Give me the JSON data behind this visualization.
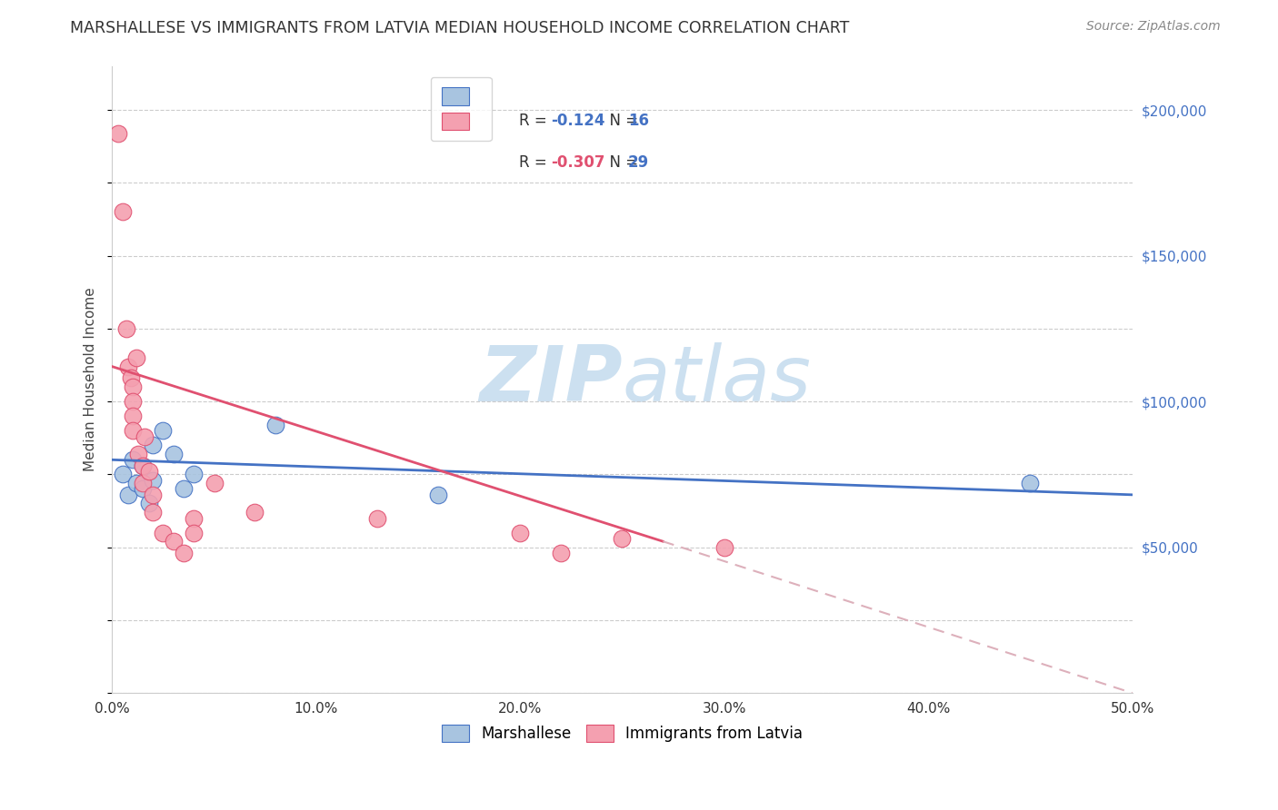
{
  "title": "MARSHALLESE VS IMMIGRANTS FROM LATVIA MEDIAN HOUSEHOLD INCOME CORRELATION CHART",
  "source": "Source: ZipAtlas.com",
  "xlabel_ticks": [
    "0.0%",
    "10.0%",
    "20.0%",
    "30.0%",
    "40.0%",
    "50.0%"
  ],
  "xlabel_tick_vals": [
    0.0,
    0.1,
    0.2,
    0.3,
    0.4,
    0.5
  ],
  "ylabel": "Median Household Income",
  "ytick_labels": [
    "$50,000",
    "$100,000",
    "$150,000",
    "$200,000"
  ],
  "ytick_vals": [
    50000,
    100000,
    150000,
    200000
  ],
  "xlim": [
    0.0,
    0.5
  ],
  "ylim": [
    0,
    215000
  ],
  "marshallese_scatter": {
    "x": [
      0.005,
      0.008,
      0.01,
      0.012,
      0.015,
      0.015,
      0.018,
      0.02,
      0.02,
      0.025,
      0.03,
      0.035,
      0.04,
      0.08,
      0.16,
      0.45
    ],
    "y": [
      75000,
      68000,
      80000,
      72000,
      78000,
      70000,
      65000,
      85000,
      73000,
      90000,
      82000,
      70000,
      75000,
      92000,
      68000,
      72000
    ],
    "color": "#a8c4e0",
    "edge_color": "#4472c4"
  },
  "latvia_scatter": {
    "x": [
      0.003,
      0.005,
      0.007,
      0.008,
      0.009,
      0.01,
      0.01,
      0.01,
      0.01,
      0.012,
      0.013,
      0.015,
      0.015,
      0.016,
      0.018,
      0.02,
      0.02,
      0.025,
      0.03,
      0.035,
      0.04,
      0.04,
      0.05,
      0.07,
      0.13,
      0.2,
      0.22,
      0.25,
      0.3
    ],
    "y": [
      192000,
      165000,
      125000,
      112000,
      108000,
      105000,
      100000,
      95000,
      90000,
      115000,
      82000,
      78000,
      72000,
      88000,
      76000,
      68000,
      62000,
      55000,
      52000,
      48000,
      60000,
      55000,
      72000,
      62000,
      60000,
      55000,
      48000,
      53000,
      50000
    ],
    "color": "#f4a0b0",
    "edge_color": "#e05070"
  },
  "marshallese_line": {
    "x": [
      0.0,
      0.5
    ],
    "y": [
      80000,
      68000
    ],
    "color": "#4472c4"
  },
  "latvia_line_solid": {
    "x": [
      0.0,
      0.27
    ],
    "y": [
      112000,
      52000
    ],
    "color": "#e05070"
  },
  "latvia_line_dashed": {
    "x": [
      0.27,
      0.5
    ],
    "y": [
      52000,
      0
    ],
    "color": "#ddb0bb"
  },
  "background_color": "#ffffff",
  "grid_color": "#cccccc",
  "watermark_zip": "ZIP",
  "watermark_atlas": "atlas",
  "watermark_color": "#cce0f0"
}
